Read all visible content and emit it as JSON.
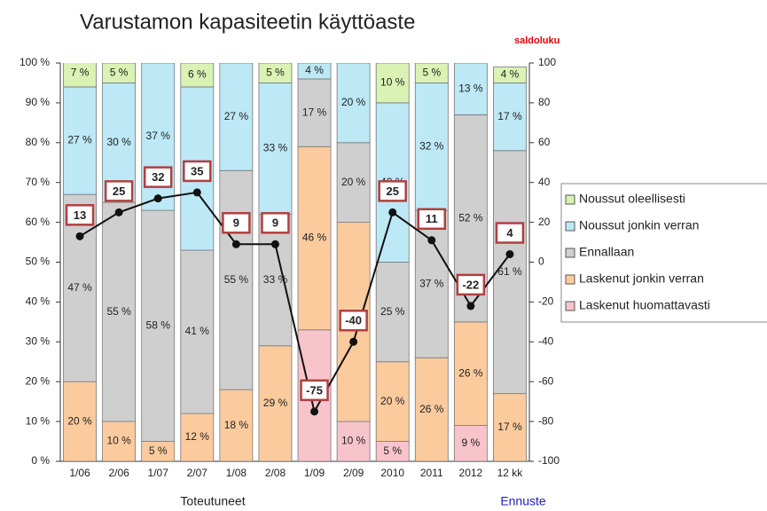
{
  "chart_data": {
    "type": "bar",
    "stacked": true,
    "title": "Varustamon kapasiteetin käyttöaste",
    "y2_label": "saldoluku",
    "annotations": [
      "Toteutuneet",
      "Ennuste"
    ],
    "categories": [
      "1/06",
      "2/06",
      "1/07",
      "2/07",
      "1/08",
      "2/08",
      "1/09",
      "2/09",
      "2010",
      "2011",
      "2012",
      "12 kk"
    ],
    "ylim": [
      0,
      100
    ],
    "yticks": [
      {
        "value": 0,
        "label": "0 %"
      },
      {
        "value": 10,
        "label": "10 %"
      },
      {
        "value": 20,
        "label": "20 %"
      },
      {
        "value": 30,
        "label": "30 %"
      },
      {
        "value": 40,
        "label": "40 %"
      },
      {
        "value": 50,
        "label": "50 %"
      },
      {
        "value": 60,
        "label": "60 %"
      },
      {
        "value": 70,
        "label": "70 %"
      },
      {
        "value": 80,
        "label": "80 %"
      },
      {
        "value": 90,
        "label": "90 %"
      },
      {
        "value": 100,
        "label": "100 %"
      }
    ],
    "y2lim": [
      -100,
      100
    ],
    "y2ticks": [
      -100,
      -80,
      -60,
      -40,
      -20,
      0,
      20,
      40,
      60,
      80,
      100
    ],
    "legend": "right",
    "series": [
      {
        "name": "Laskenut huomattavasti",
        "color": "#f8c4cc",
        "values": [
          0,
          0,
          0,
          0,
          0,
          0,
          33,
          10,
          5,
          0,
          9,
          0
        ],
        "value_labels": [
          null,
          null,
          null,
          null,
          null,
          null,
          "33 %",
          "10 %",
          "5 %",
          null,
          "9 %",
          null
        ]
      },
      {
        "name": "Laskenut jonkin verran",
        "color": "#fbcb9e",
        "values": [
          20,
          10,
          5,
          12,
          18,
          29,
          46,
          50,
          20,
          26,
          26,
          17
        ],
        "value_labels": [
          "20 %",
          "10 %",
          "5 %",
          "12 %",
          "18 %",
          "29 %",
          "46 %",
          "50 %",
          "20 %",
          "26 %",
          "26 %",
          "17 %"
        ]
      },
      {
        "name": "Ennallaan",
        "color": "#cfcfcf",
        "values": [
          47,
          55,
          58,
          41,
          55,
          33,
          17,
          20,
          25,
          37,
          52,
          61
        ],
        "value_labels": [
          "47 %",
          "55 %",
          "58 %",
          "41 %",
          "55 %",
          "33 %",
          "17 %",
          "20 %",
          "25 %",
          "37 %",
          "52 %",
          "61 %"
        ]
      },
      {
        "name": "Noussut jonkin verran",
        "color": "#bde8f6",
        "values": [
          27,
          30,
          37,
          41,
          27,
          33,
          4,
          20,
          40,
          32,
          13,
          17
        ],
        "value_labels": [
          "27 %",
          "30 %",
          "37 %",
          "41 %",
          "27 %",
          "33 %",
          "4 %",
          "20 %",
          "40 %",
          "32 %",
          "13 %",
          "17 %"
        ]
      },
      {
        "name": "Noussut oleellisesti",
        "color": "#daf2b4",
        "values": [
          7,
          5,
          0,
          6,
          0,
          5,
          0,
          0,
          10,
          5,
          0,
          4
        ],
        "value_labels": [
          "7 %",
          "5 %",
          null,
          "6 %",
          null,
          "5 %",
          null,
          null,
          "10 %",
          "5 %",
          null,
          "4 %"
        ]
      },
      {
        "type": "line",
        "axis": "y2",
        "color": "#111111",
        "box_color": "#b04040",
        "values": [
          13,
          25,
          32,
          35,
          9,
          9,
          -75,
          -40,
          25,
          11,
          -22,
          4
        ]
      }
    ]
  }
}
